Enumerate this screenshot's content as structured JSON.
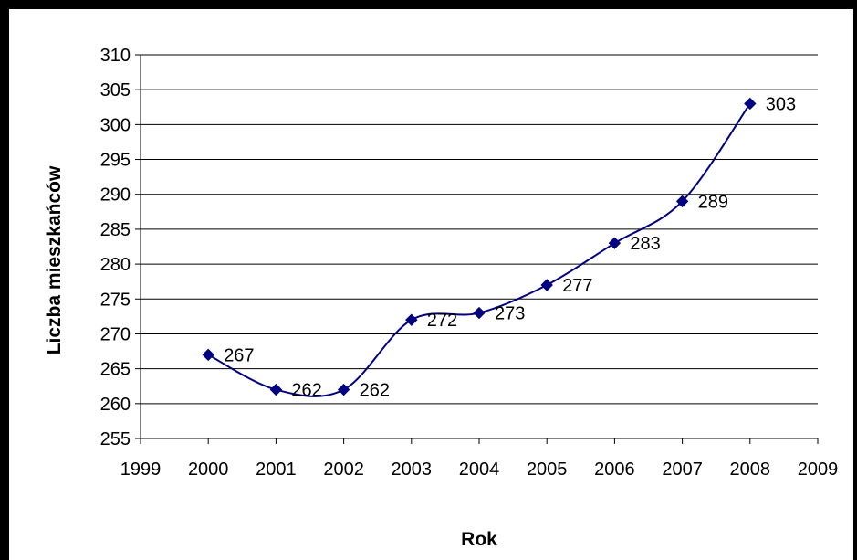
{
  "chart_data": {
    "type": "line",
    "title": "",
    "xlabel": "Rok",
    "ylabel": "Liczba mieszkańców",
    "xlim": [
      1999,
      2009
    ],
    "ylim": [
      255,
      310
    ],
    "xticks": [
      1999,
      2000,
      2001,
      2002,
      2003,
      2004,
      2005,
      2006,
      2007,
      2008,
      2009
    ],
    "yticks": [
      255,
      260,
      265,
      270,
      275,
      280,
      285,
      290,
      295,
      300,
      305,
      310
    ],
    "grid": "horizontal",
    "legend": "none",
    "smooth": true,
    "series": [
      {
        "x": [
          2000,
          2001,
          2002,
          2003,
          2004,
          2005,
          2006,
          2007,
          2008
        ],
        "values": [
          267,
          262,
          262,
          272,
          273,
          277,
          283,
          289,
          303
        ],
        "labels": [
          "267",
          "262",
          "262",
          "272",
          "273",
          "277",
          "283",
          "289",
          "303"
        ],
        "color": "#000080",
        "marker": "diamond"
      }
    ]
  }
}
